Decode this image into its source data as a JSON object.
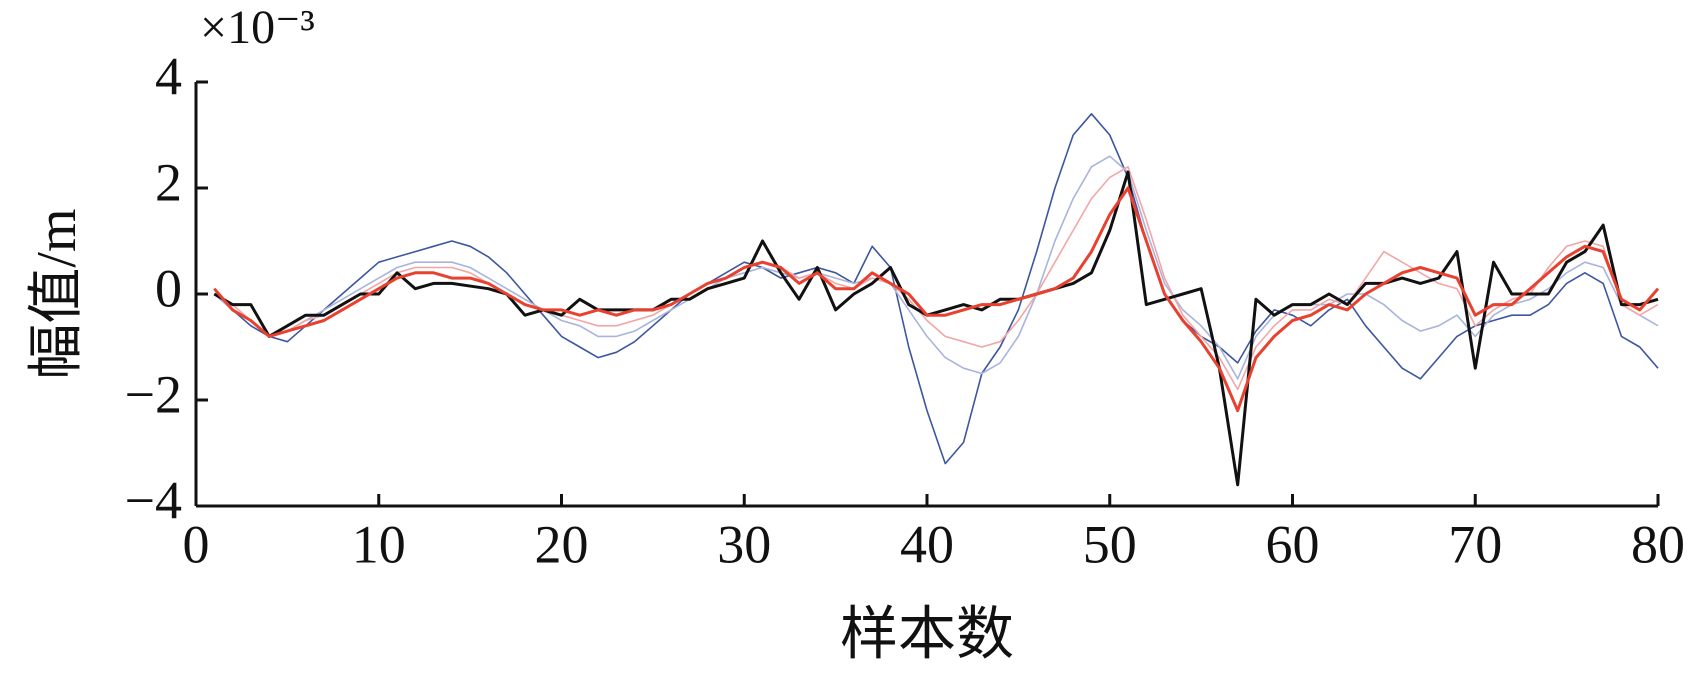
{
  "chart_data": {
    "type": "line",
    "scale_label": "×10⁻³",
    "y_label": "幅值/m",
    "x_label": "样本数",
    "x": [
      1,
      2,
      3,
      4,
      5,
      6,
      7,
      8,
      9,
      10,
      11,
      12,
      13,
      14,
      15,
      16,
      17,
      18,
      19,
      20,
      21,
      22,
      23,
      24,
      25,
      26,
      27,
      28,
      29,
      30,
      31,
      32,
      33,
      34,
      35,
      36,
      37,
      38,
      39,
      40,
      41,
      42,
      43,
      44,
      45,
      46,
      47,
      48,
      49,
      50,
      51,
      52,
      53,
      54,
      55,
      56,
      57,
      58,
      59,
      60,
      61,
      62,
      63,
      64,
      65,
      66,
      67,
      68,
      69,
      70,
      71,
      72,
      73,
      74,
      75,
      76,
      77,
      78,
      79,
      80
    ],
    "xlim": [
      0,
      80
    ],
    "xticks": [
      0,
      10,
      20,
      30,
      40,
      50,
      60,
      70,
      80
    ],
    "ylim": [
      -4,
      4
    ],
    "yticks": [
      {
        "value": -4,
        "label": "−4"
      },
      {
        "value": -2,
        "label": "−2"
      },
      0,
      2,
      4
    ],
    "series": [
      {
        "color": "#3d56a0",
        "values": [
          0,
          -0.3,
          -0.6,
          -0.8,
          -0.9,
          -0.6,
          -0.3,
          0,
          0.3,
          0.6,
          0.7,
          0.8,
          0.9,
          1.0,
          0.9,
          0.7,
          0.4,
          0,
          -0.4,
          -0.8,
          -1.0,
          -1.2,
          -1.1,
          -0.9,
          -0.6,
          -0.3,
          0,
          0.2,
          0.4,
          0.6,
          0.5,
          0.3,
          0.4,
          0.5,
          0.4,
          0.2,
          0.9,
          0.5,
          -1.0,
          -2.2,
          -3.2,
          -2.8,
          -1.5,
          -1.0,
          -0.3,
          0.8,
          2.0,
          3.0,
          3.4,
          3.0,
          2.2,
          1.0,
          0,
          -0.5,
          -0.8,
          -1.0,
          -1.3,
          -0.7,
          -0.3,
          -0.4,
          -0.6,
          -0.3,
          -0.1,
          -0.6,
          -1.0,
          -1.4,
          -1.6,
          -1.2,
          -0.8,
          -0.6,
          -0.5,
          -0.4,
          -0.4,
          -0.2,
          0.2,
          0.4,
          0.2,
          -0.8,
          -1.0,
          -1.4
        ]
      },
      {
        "color": "#a9b4dd",
        "values": [
          0,
          -0.3,
          -0.5,
          -0.8,
          -0.7,
          -0.5,
          -0.3,
          -0.1,
          0.1,
          0.3,
          0.5,
          0.6,
          0.6,
          0.6,
          0.5,
          0.3,
          0.1,
          -0.1,
          -0.3,
          -0.5,
          -0.6,
          -0.8,
          -0.8,
          -0.7,
          -0.5,
          -0.3,
          -0.1,
          0.1,
          0.3,
          0.4,
          0.5,
          0.4,
          0.3,
          0.4,
          0.3,
          0.2,
          0.3,
          0.2,
          -0.3,
          -0.8,
          -1.2,
          -1.4,
          -1.5,
          -1.3,
          -0.8,
          0,
          1.0,
          1.8,
          2.4,
          2.6,
          2.3,
          1.2,
          0.2,
          -0.3,
          -0.6,
          -1.0,
          -1.6,
          -0.8,
          -0.4,
          -0.2,
          -0.2,
          -0.2,
          0,
          0,
          -0.2,
          -0.5,
          -0.7,
          -0.6,
          -0.4,
          -0.8,
          -0.4,
          -0.2,
          -0.1,
          0.1,
          0.4,
          0.6,
          0.5,
          -0.2,
          -0.4,
          -0.6
        ]
      },
      {
        "color": "#f4a6a6",
        "values": [
          0,
          -0.2,
          -0.5,
          -0.8,
          -0.7,
          -0.5,
          -0.4,
          -0.2,
          0,
          0.2,
          0.4,
          0.5,
          0.5,
          0.5,
          0.4,
          0.2,
          0,
          -0.2,
          -0.3,
          -0.4,
          -0.5,
          -0.6,
          -0.6,
          -0.5,
          -0.4,
          -0.2,
          0,
          0.2,
          0.3,
          0.5,
          0.6,
          0.5,
          0.3,
          0.4,
          0.2,
          0.1,
          0.3,
          0.2,
          -0.1,
          -0.5,
          -0.8,
          -0.9,
          -1.0,
          -0.9,
          -0.5,
          0,
          0.6,
          1.2,
          1.8,
          2.2,
          2.4,
          1.4,
          0.3,
          -0.4,
          -0.8,
          -1.2,
          -1.8,
          -1.0,
          -0.6,
          -0.3,
          -0.3,
          -0.1,
          -0.2,
          0.3,
          0.8,
          0.6,
          0.4,
          0.2,
          0.1,
          -0.6,
          -0.3,
          -0.1,
          0,
          0.5,
          0.9,
          1.0,
          0.9,
          -0.2,
          -0.4,
          -0.2
        ]
      },
      {
        "color": "#111111",
        "values": [
          0,
          -0.2,
          -0.2,
          -0.8,
          -0.6,
          -0.4,
          -0.4,
          -0.2,
          0,
          0,
          0.4,
          0.1,
          0.2,
          0.2,
          0.15,
          0.1,
          0,
          -0.4,
          -0.3,
          -0.4,
          -0.1,
          -0.3,
          -0.3,
          -0.3,
          -0.3,
          -0.1,
          -0.1,
          0.1,
          0.2,
          0.3,
          1.0,
          0.4,
          -0.1,
          0.5,
          -0.3,
          0,
          0.2,
          0.5,
          -0.2,
          -0.4,
          -0.3,
          -0.2,
          -0.3,
          -0.1,
          -0.1,
          0,
          0.1,
          0.2,
          0.4,
          1.2,
          2.3,
          -0.2,
          -0.1,
          0,
          0.1,
          -1.4,
          -3.6,
          -0.1,
          -0.4,
          -0.2,
          -0.2,
          0,
          -0.2,
          0.2,
          0.2,
          0.3,
          0.2,
          0.3,
          0.8,
          -1.4,
          0.6,
          0,
          0,
          0,
          0.6,
          0.8,
          1.3,
          -0.2,
          -0.2,
          -0.1
        ]
      },
      {
        "color": "#e8412f",
        "values": [
          0.1,
          -0.3,
          -0.5,
          -0.8,
          -0.7,
          -0.6,
          -0.5,
          -0.3,
          -0.1,
          0.1,
          0.3,
          0.4,
          0.4,
          0.3,
          0.3,
          0.2,
          0,
          -0.2,
          -0.3,
          -0.3,
          -0.4,
          -0.3,
          -0.4,
          -0.3,
          -0.3,
          -0.2,
          0,
          0.2,
          0.3,
          0.5,
          0.6,
          0.5,
          0.2,
          0.4,
          0.1,
          0.1,
          0.4,
          0.2,
          0,
          -0.4,
          -0.4,
          -0.3,
          -0.2,
          -0.2,
          -0.1,
          0,
          0.1,
          0.3,
          0.8,
          1.5,
          2.0,
          1.0,
          0,
          -0.5,
          -0.9,
          -1.4,
          -2.2,
          -1.2,
          -0.8,
          -0.5,
          -0.4,
          -0.2,
          -0.3,
          0,
          0.2,
          0.4,
          0.5,
          0.4,
          0.3,
          -0.4,
          -0.2,
          -0.2,
          0.1,
          0.4,
          0.7,
          0.9,
          0.8,
          -0.1,
          -0.3,
          0.1
        ]
      }
    ]
  }
}
